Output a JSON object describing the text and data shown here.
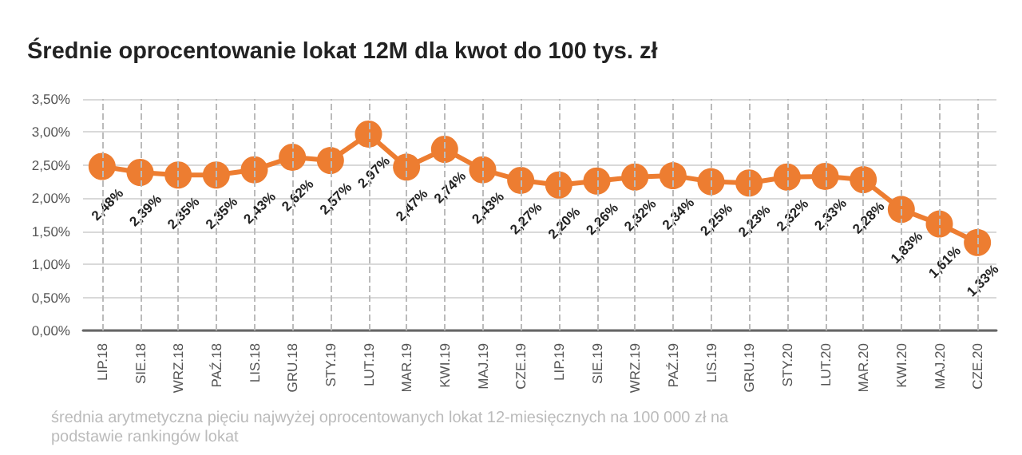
{
  "chart_data": {
    "type": "line",
    "title": "Średnie oprocentowanie lokat 12M dla kwot do 100 tys. zł",
    "categories": [
      "LIP.18",
      "SIE.18",
      "WRZ.18",
      "PAŹ.18",
      "LIS.18",
      "GRU.18",
      "STY.19",
      "LUT.19",
      "MAR.19",
      "KWI.19",
      "MAJ.19",
      "CZE.19",
      "LIP.19",
      "SIE.19",
      "WRZ.19",
      "PAŹ.19",
      "LIS.19",
      "GRU.19",
      "STY.20",
      "LUT.20",
      "MAR.20",
      "KWI.20",
      "MAJ.20",
      "CZE.20"
    ],
    "series": [
      {
        "color": "#ed7d31",
        "values": [
          2.48,
          2.39,
          2.35,
          2.35,
          2.43,
          2.62,
          2.57,
          2.97,
          2.47,
          2.74,
          2.43,
          2.27,
          2.2,
          2.26,
          2.32,
          2.34,
          2.25,
          2.23,
          2.32,
          2.33,
          2.28,
          1.83,
          1.61,
          1.33
        ],
        "value_labels": [
          "2,48%",
          "2,39%",
          "2,35%",
          "2,35%",
          "2,43%",
          "2,62%",
          "2,57%",
          "2,97%",
          "2,47%",
          "2,74%",
          "2,43%",
          "2,27%",
          "2,20%",
          "2,26%",
          "2,32%",
          "2,34%",
          "2,25%",
          "2,23%",
          "2,32%",
          "2,33%",
          "2,28%",
          "1,83%",
          "1,61%",
          "1,33%"
        ]
      }
    ],
    "ylim": [
      0,
      3.5
    ],
    "yticks": [
      {
        "value": 0,
        "label": "0,00%"
      },
      {
        "value": 0.5,
        "label": "0,50%"
      },
      {
        "value": 1,
        "label": "1,00%"
      },
      {
        "value": 1.5,
        "label": "1,50%"
      },
      {
        "value": 2,
        "label": "2,00%"
      },
      {
        "value": 2.5,
        "label": "2,50%"
      },
      {
        "value": 3,
        "label": "3,00%"
      },
      {
        "value": 3.5,
        "label": "3,50%"
      }
    ],
    "grid": true,
    "marker": "circle",
    "line_style": "solid",
    "annotations": [
      "średnia arytmetyczna pięciu najwyżej oprocentowanych lokat 12-miesięcznych na 100 000 zł na podstawie rankingów lokat"
    ]
  }
}
